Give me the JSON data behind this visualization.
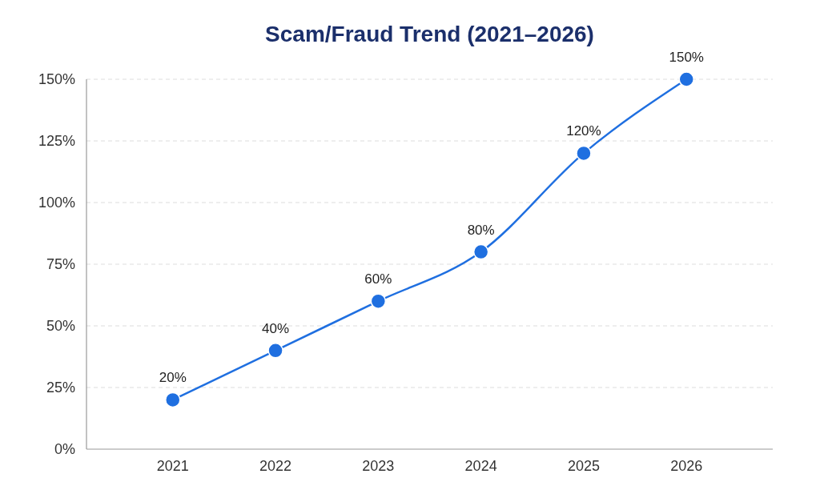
{
  "chart_data": {
    "type": "line",
    "title": "Scam/Fraud Trend (2021–2026)",
    "categories": [
      "2021",
      "2022",
      "2023",
      "2024",
      "2025",
      "2026"
    ],
    "values": [
      20,
      40,
      60,
      80,
      120,
      150
    ],
    "value_labels": [
      "20%",
      "40%",
      "60%",
      "80%",
      "120%",
      "150%"
    ],
    "color": "#1f6fe0",
    "marker": "circle",
    "line_style": "solid",
    "ylim": [
      0,
      150
    ],
    "yticks": [
      {
        "value": 0,
        "label": "0%"
      },
      {
        "value": 25,
        "label": "25%"
      },
      {
        "value": 50,
        "label": "50%"
      },
      {
        "value": 75,
        "label": "75%"
      },
      {
        "value": 100,
        "label": "100%"
      },
      {
        "value": 125,
        "label": "125%"
      },
      {
        "value": 150,
        "label": "150%"
      }
    ],
    "grid": "y"
  }
}
